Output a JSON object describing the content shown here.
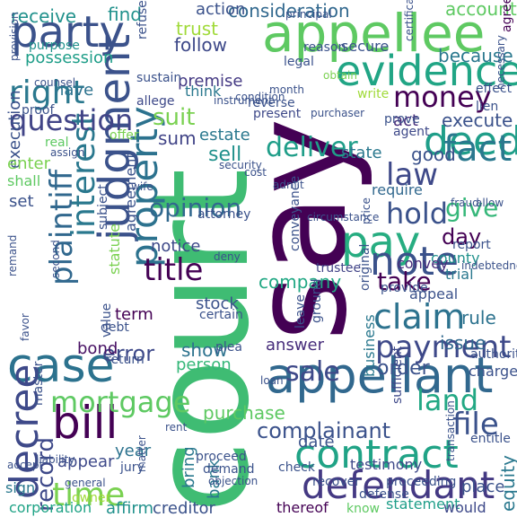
{
  "words": [
    {
      "text": "court",
      "color": "#3fbc73"
    },
    {
      "text": "say",
      "color": "#440154"
    },
    {
      "text": "appellee",
      "color": "#5ec962"
    },
    {
      "text": "appellant",
      "color": "#31688e"
    },
    {
      "text": "evidence",
      "color": "#21a585"
    },
    {
      "text": "party",
      "color": "#3b528b"
    },
    {
      "text": "contract",
      "color": "#20a386"
    },
    {
      "text": "defendant",
      "color": "#443983"
    },
    {
      "text": "case",
      "color": "#2c728e"
    },
    {
      "text": "bill",
      "color": "#440154"
    },
    {
      "text": "pay",
      "color": "#27ad81"
    },
    {
      "text": "deed",
      "color": "#1f9e89"
    },
    {
      "text": "note",
      "color": "#3b528b"
    },
    {
      "text": "judgment",
      "color": "#3b528b"
    },
    {
      "text": "property",
      "color": "#2c728e"
    },
    {
      "text": "decree",
      "color": "#3e4989"
    },
    {
      "text": "plaintiff",
      "color": "#31688e"
    },
    {
      "text": "interest",
      "color": "#2a788e"
    },
    {
      "text": "money",
      "color": "#440154"
    },
    {
      "text": "right",
      "color": "#2a788e"
    },
    {
      "text": "question",
      "color": "#414487"
    },
    {
      "text": "claim",
      "color": "#2c728e"
    },
    {
      "text": "payment",
      "color": "#3e4989"
    },
    {
      "text": "hold",
      "color": "#3b528b"
    },
    {
      "text": "fact",
      "color": "#2a788e"
    },
    {
      "text": "law",
      "color": "#3e4989"
    },
    {
      "text": "time",
      "color": "#7ad151"
    },
    {
      "text": "mortgage",
      "color": "#5ec962"
    },
    {
      "text": "title",
      "color": "#440154"
    },
    {
      "text": "sale",
      "color": "#3e4989"
    },
    {
      "text": "land",
      "color": "#22a884"
    },
    {
      "text": "file",
      "color": "#3b528b"
    },
    {
      "text": "deliver",
      "color": "#1f9e89"
    },
    {
      "text": "give",
      "color": "#35b779"
    },
    {
      "text": "take",
      "color": "#440154"
    },
    {
      "text": "opinion",
      "color": "#31688e"
    },
    {
      "text": "suit",
      "color": "#7ad151"
    },
    {
      "text": "record",
      "color": "#3e4989"
    },
    {
      "text": "complainant",
      "color": "#3b528b"
    },
    {
      "text": "error",
      "color": "#3e4989"
    },
    {
      "text": "possession",
      "color": "#1f9e89"
    },
    {
      "text": "consideration",
      "color": "#31688e"
    },
    {
      "text": "receive",
      "color": "#21918c"
    },
    {
      "text": "find",
      "color": "#21918c"
    },
    {
      "text": "action",
      "color": "#3b528b"
    },
    {
      "text": "account",
      "color": "#5ec962"
    },
    {
      "text": "trust",
      "color": "#a0da39"
    },
    {
      "text": "follow",
      "color": "#3e4989"
    },
    {
      "text": "because",
      "color": "#2a788e"
    },
    {
      "text": "premise",
      "color": "#443983"
    },
    {
      "text": "have",
      "color": "#2c728e"
    },
    {
      "text": "execute",
      "color": "#3b528b"
    },
    {
      "text": "act",
      "color": "#472d7b"
    },
    {
      "text": "good",
      "color": "#3b528b"
    },
    {
      "text": "sell",
      "color": "#21918c"
    },
    {
      "text": "sum",
      "color": "#414487"
    },
    {
      "text": "estate",
      "color": "#2a788e"
    },
    {
      "text": "state",
      "color": "#2a788e"
    },
    {
      "text": "day",
      "color": "#440154"
    },
    {
      "text": "company",
      "color": "#22a884"
    },
    {
      "text": "notice",
      "color": "#3e4989"
    },
    {
      "text": "stock",
      "color": "#3b528b"
    },
    {
      "text": "show",
      "color": "#2c728e"
    },
    {
      "text": "person",
      "color": "#35b779"
    },
    {
      "text": "order",
      "color": "#3b528b"
    },
    {
      "text": "rule",
      "color": "#2c728e"
    },
    {
      "text": "issue",
      "color": "#31688e"
    },
    {
      "text": "answer",
      "color": "#472d7b"
    },
    {
      "text": "purchase",
      "color": "#5ec962"
    },
    {
      "text": "bond",
      "color": "#471063"
    },
    {
      "text": "term",
      "color": "#440154"
    },
    {
      "text": "year",
      "color": "#2c728e"
    },
    {
      "text": "appear",
      "color": "#3e4989"
    },
    {
      "text": "bank",
      "color": "#2a788e"
    },
    {
      "text": "bring",
      "color": "#2a788e"
    },
    {
      "text": "date",
      "color": "#3b528b"
    },
    {
      "text": "creditor",
      "color": "#3b528b"
    },
    {
      "text": "affirm",
      "color": "#21918c"
    },
    {
      "text": "corporation",
      "color": "#20a386"
    },
    {
      "text": "sign",
      "color": "#2a788e"
    },
    {
      "text": "thereof",
      "color": "#440154"
    },
    {
      "text": "know",
      "color": "#5ec962"
    },
    {
      "text": "statement",
      "color": "#1f9e89"
    },
    {
      "text": "would",
      "color": "#3e4989"
    },
    {
      "text": "place",
      "color": "#3b528b"
    },
    {
      "text": "equity",
      "color": "#2a788e"
    },
    {
      "text": "trial",
      "color": "#2a788e"
    },
    {
      "text": "county",
      "color": "#21918c"
    },
    {
      "text": "convey",
      "color": "#472d7b"
    },
    {
      "text": "appeal",
      "color": "#3b528b"
    },
    {
      "text": "report",
      "color": "#3b528b"
    },
    {
      "text": "statute",
      "color": "#7ad151"
    },
    {
      "text": "agreement",
      "color": "#3b528b"
    },
    {
      "text": "execution",
      "color": "#3b528b"
    },
    {
      "text": "enter",
      "color": "#7ad151"
    },
    {
      "text": "shall",
      "color": "#5ec962"
    },
    {
      "text": "set",
      "color": "#3b528b"
    },
    {
      "text": "business",
      "color": "#2a788e"
    },
    {
      "text": "master",
      "color": "#3b528b"
    },
    {
      "text": "charge",
      "color": "#3b528b"
    },
    {
      "text": "authority",
      "color": "#3b528b"
    },
    {
      "text": "trustee",
      "color": "#414487"
    },
    {
      "text": "require",
      "color": "#31688e"
    },
    {
      "text": "testimony",
      "color": "#3e4989"
    },
    {
      "text": "sufficient",
      "color": "#3e4989"
    },
    {
      "text": "think",
      "color": "#2a788e"
    },
    {
      "text": "reverse",
      "color": "#3b528b"
    },
    {
      "text": "present",
      "color": "#3e4989"
    },
    {
      "text": "agent",
      "color": "#3e4989"
    },
    {
      "text": "allege",
      "color": "#3e4989"
    },
    {
      "text": "proof",
      "color": "#3b528b"
    },
    {
      "text": "real",
      "color": "#5ec962"
    },
    {
      "text": "offer",
      "color": "#7ad151"
    },
    {
      "text": "sustain",
      "color": "#3b528b"
    },
    {
      "text": "obtain",
      "color": "#7ad151"
    },
    {
      "text": "legal",
      "color": "#3b528b"
    },
    {
      "text": "reason",
      "color": "#3b528b"
    },
    {
      "text": "secure",
      "color": "#3b528b"
    },
    {
      "text": "purpose",
      "color": "#21918c"
    },
    {
      "text": "refuse",
      "color": "#3b528b"
    },
    {
      "text": "agree",
      "color": "#440154"
    },
    {
      "text": "prove",
      "color": "#3b528b"
    },
    {
      "text": "write",
      "color": "#a0da39"
    },
    {
      "text": "effect",
      "color": "#3b528b"
    },
    {
      "text": "lien",
      "color": "#3b528b"
    },
    {
      "text": "attorney",
      "color": "#3b528b"
    },
    {
      "text": "certain",
      "color": "#3b528b"
    },
    {
      "text": "plea",
      "color": "#3b528b"
    },
    {
      "text": "value",
      "color": "#3b528b"
    },
    {
      "text": "debt",
      "color": "#3b528b"
    },
    {
      "text": "return",
      "color": "#3b528b"
    },
    {
      "text": "proceed",
      "color": "#3b528b"
    },
    {
      "text": "jury",
      "color": "#3b528b"
    },
    {
      "text": "owner",
      "color": "#a0da39"
    },
    {
      "text": "demand",
      "color": "#3b528b"
    },
    {
      "text": "check",
      "color": "#3b528b"
    },
    {
      "text": "recover",
      "color": "#3b528b"
    },
    {
      "text": "defense",
      "color": "#3b528b"
    },
    {
      "text": "proceeding",
      "color": "#3b528b"
    },
    {
      "text": "entitle",
      "color": "#3b528b"
    },
    {
      "text": "transaction",
      "color": "#3b528b"
    },
    {
      "text": "matter",
      "color": "#3b528b"
    },
    {
      "text": "liability",
      "color": "#3b528b"
    },
    {
      "text": "accept",
      "color": "#3b528b"
    },
    {
      "text": "rent",
      "color": "#3b528b"
    },
    {
      "text": "general",
      "color": "#3b528b"
    },
    {
      "text": "leave",
      "color": "#3b528b"
    },
    {
      "text": "ground",
      "color": "#3b528b"
    },
    {
      "text": "conveyance",
      "color": "#3b528b"
    },
    {
      "text": "original",
      "color": "#3b528b"
    },
    {
      "text": "provide",
      "color": "#3b528b"
    },
    {
      "text": "subject",
      "color": "#3b528b"
    },
    {
      "text": "counsel",
      "color": "#3b528b"
    },
    {
      "text": "principal",
      "color": "#3b528b"
    },
    {
      "text": "certificate",
      "color": "#3b528b"
    },
    {
      "text": "instrument",
      "color": "#3b528b"
    },
    {
      "text": "condition",
      "color": "#3b528b"
    },
    {
      "text": "purchaser",
      "color": "#3b528b"
    },
    {
      "text": "month",
      "color": "#3b528b"
    },
    {
      "text": "assign",
      "color": "#3b528b"
    },
    {
      "text": "security",
      "color": "#3b528b"
    },
    {
      "text": "admit",
      "color": "#3b528b"
    },
    {
      "text": "cost",
      "color": "#3b528b"
    },
    {
      "text": "wife",
      "color": "#3b528b"
    },
    {
      "text": "deny",
      "color": "#3b528b"
    },
    {
      "text": "circumstance",
      "color": "#3b528b"
    },
    {
      "text": "price",
      "color": "#3b528b"
    },
    {
      "text": "fraud",
      "color": "#3b528b"
    },
    {
      "text": "allow",
      "color": "#3b528b"
    },
    {
      "text": "necessary",
      "color": "#3b528b"
    },
    {
      "text": "loan",
      "color": "#3b528b"
    },
    {
      "text": "objection",
      "color": "#3b528b"
    },
    {
      "text": "favor",
      "color": "#3b528b"
    },
    {
      "text": "remand",
      "color": "#3b528b"
    },
    {
      "text": "second",
      "color": "#3b528b"
    },
    {
      "text": "indebtedness",
      "color": "#3b528b"
    },
    {
      "text": "provision",
      "color": "#3b528b"
    },
    {
      "text": "legend",
      "color": "#3b528b"
    },
    {
      "text": "contain",
      "color": "#3b528b"
    },
    {
      "text": "assignment",
      "color": "#3b528b"
    }
  ]
}
